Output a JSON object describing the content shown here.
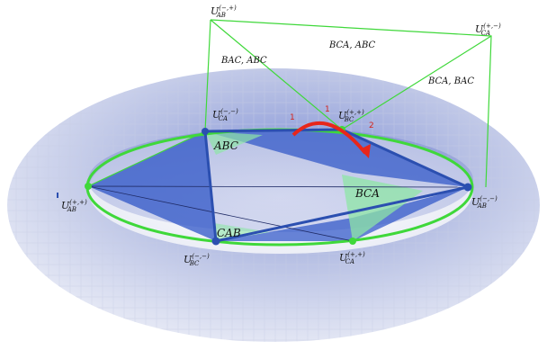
{
  "labels": {
    "u_ab_top": {
      "base": "U",
      "sub": "AB",
      "sup": "(−,+)"
    },
    "u_ca_tr": {
      "base": "U",
      "sub": "CA",
      "sup": "(+,−)"
    },
    "u_ca_inner": {
      "base": "U",
      "sub": "CA",
      "sup": "(−,−)"
    },
    "u_bc_inner": {
      "base": "U",
      "sub": "BC",
      "sup": "(+,+)"
    },
    "u_ab_left": {
      "base": "U",
      "sub": "AB",
      "sup": "(+,+)"
    },
    "u_ab_right": {
      "base": "U",
      "sub": "AB",
      "sup": "(−,−)"
    },
    "u_bc_bot": {
      "base": "U",
      "sub": "BC",
      "sup": "(−,−)"
    },
    "u_ca_bot": {
      "base": "U",
      "sub": "CA",
      "sup": "(+,+)"
    }
  },
  "region_labels": {
    "bac_abc": "BAC, ABC",
    "bca_abc": "BCA, ABC",
    "bca_bac": "BCA, BAC",
    "abc": "ABC",
    "bca": "BCA",
    "cab": "CAB"
  },
  "arc_numbers": {
    "n1a": "1",
    "n1b": "1",
    "n2": "2"
  },
  "colors": {
    "torus": "#b9c3e2",
    "green_line": "#3fd83a",
    "blue_line": "#2b4fb0",
    "blue_fill": "#2f56c7",
    "green_fill": "#8ee6a6",
    "red_arc": "#e8261b"
  }
}
